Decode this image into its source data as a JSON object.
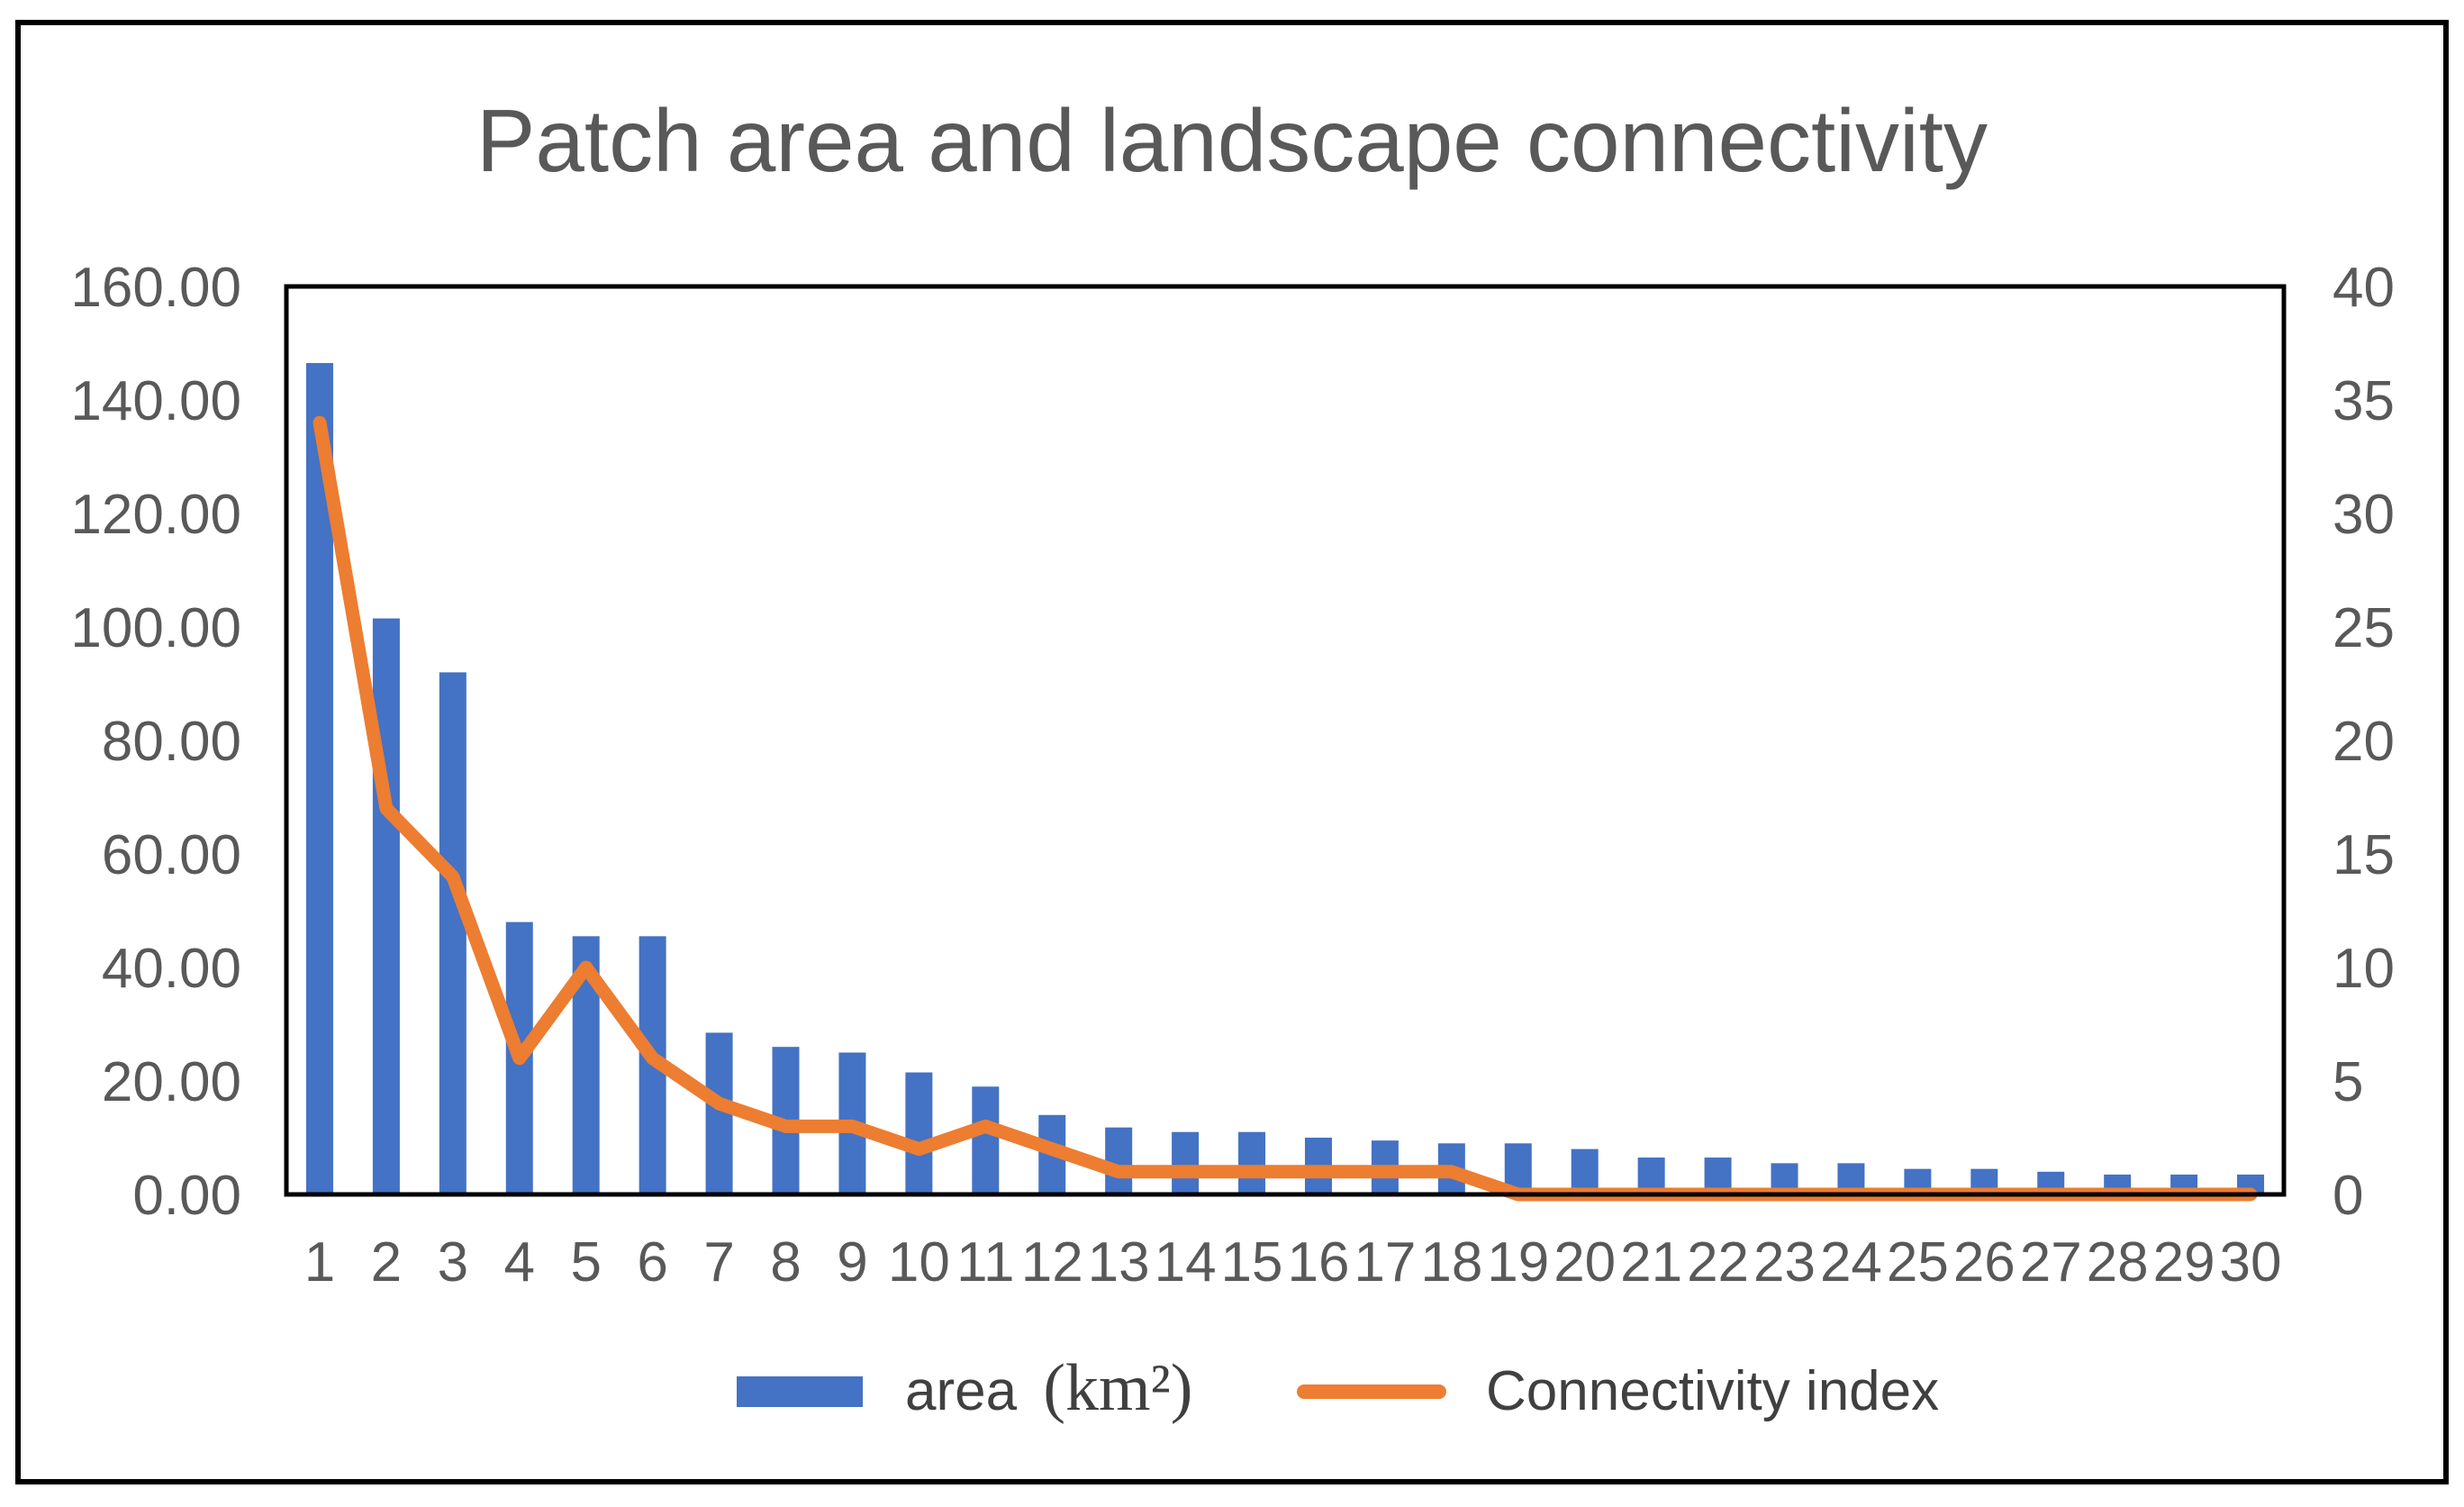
{
  "chart_data": {
    "type": "bar",
    "title": "Patch area and landscape connectivity",
    "categories": [
      "1",
      "2",
      "3",
      "4",
      "5",
      "6",
      "7",
      "8",
      "9",
      "10",
      "11",
      "12",
      "13",
      "14",
      "15",
      "16",
      "17",
      "18",
      "19",
      "20",
      "21",
      "22",
      "23",
      "24",
      "25",
      "26",
      "27",
      "28",
      "29",
      "30"
    ],
    "series": [
      {
        "name": "area",
        "unit": "(km²)",
        "type": "bar",
        "axis": "left",
        "color": "#4472C4",
        "values": [
          146.5,
          101.5,
          92.0,
          48.0,
          45.5,
          45.5,
          28.5,
          26.0,
          25.0,
          21.5,
          19.0,
          14.0,
          11.8,
          11.0,
          11.0,
          10.0,
          9.5,
          9.0,
          9.0,
          8.0,
          6.5,
          6.5,
          5.5,
          5.5,
          4.5,
          4.5,
          4.0,
          3.5,
          3.5,
          3.5
        ]
      },
      {
        "name": "Connectivity index",
        "type": "line",
        "axis": "right",
        "color": "#ED7D31",
        "values": [
          34.0,
          17.0,
          14.0,
          6.0,
          10.0,
          6.0,
          4.0,
          3.0,
          3.0,
          2.0,
          3.0,
          2.0,
          1.0,
          1.0,
          1.0,
          1.0,
          1.0,
          1.0,
          0.0,
          0.0,
          0.0,
          0.0,
          0.0,
          0.0,
          0.0,
          0.0,
          0.0,
          0.0,
          0.0,
          0.0
        ]
      }
    ],
    "y_left": {
      "lim": [
        0,
        160
      ],
      "ticks": [
        0,
        20,
        40,
        60,
        80,
        100,
        120,
        140,
        160
      ],
      "tick_labels": [
        "0.00",
        "20.00",
        "40.00",
        "60.00",
        "80.00",
        "100.00",
        "120.00",
        "140.00",
        "160.00"
      ]
    },
    "y_right": {
      "lim": [
        0,
        40
      ],
      "ticks": [
        0,
        5,
        10,
        15,
        20,
        25,
        30,
        35,
        40
      ],
      "tick_labels": [
        "0",
        "5",
        "10",
        "15",
        "20",
        "25",
        "30",
        "35",
        "40"
      ]
    },
    "grid": false,
    "legend_position": "bottom"
  }
}
